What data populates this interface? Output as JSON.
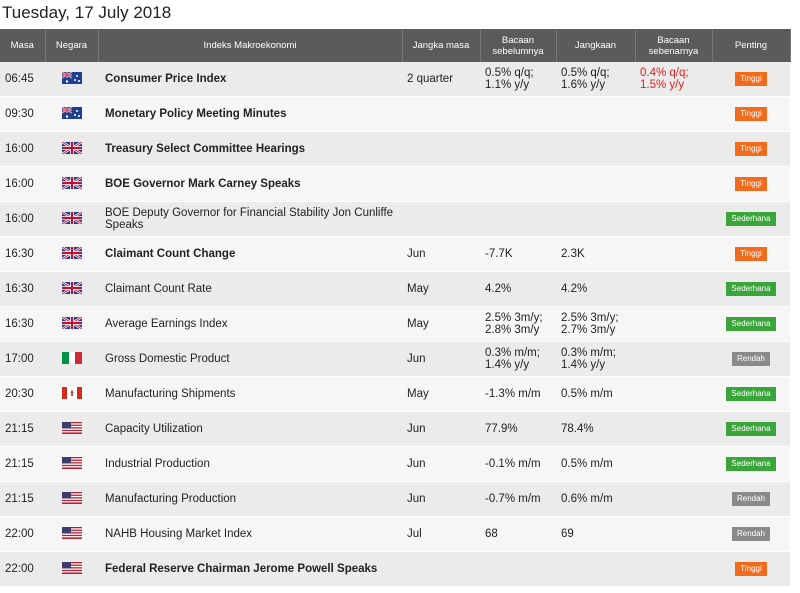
{
  "header": {
    "title": "Tuesday, 17 July 2018"
  },
  "table": {
    "columns": [
      "Masa",
      "Negara",
      "Indeks Makroekonomi",
      "Jangka masa",
      "Bacaan\nsebelumnya",
      "Jangkaan",
      "Bacaan\nsebenarnya",
      "Penting"
    ],
    "rows": [
      {
        "time": "06:45",
        "flag": "AU",
        "event": "Consumer Price Index",
        "bold": true,
        "period": "2 quarter",
        "previous": "0.5% q/q;\n1.1% y/y",
        "forecast": "0.5% q/q;\n1.6% y/y",
        "actual": "0.4% q/q;\n1.5% y/y",
        "importance": {
          "label": "Tinggi",
          "color": "#f26a1b"
        }
      },
      {
        "time": "09:30",
        "flag": "AU",
        "event": "Monetary Policy Meeting Minutes",
        "bold": true,
        "importance": {
          "label": "Tinggi",
          "color": "#f26a1b"
        }
      },
      {
        "time": "16:00",
        "flag": "GB",
        "event": "Treasury Select Committee Hearings",
        "bold": true,
        "importance": {
          "label": "Tinggi",
          "color": "#f26a1b"
        }
      },
      {
        "time": "16:00",
        "flag": "GB",
        "event": "BOE Governor Mark Carney Speaks",
        "bold": true,
        "importance": {
          "label": "Tinggi",
          "color": "#f26a1b"
        }
      },
      {
        "time": "16:00",
        "flag": "GB",
        "event": "BOE Deputy Governor for Financial Stability Jon Cunliffe Speaks",
        "bold": false,
        "importance": {
          "label": "Sederhana",
          "color": "#3aa53a"
        }
      },
      {
        "time": "16:30",
        "flag": "GB",
        "event": "Claimant Count Change",
        "bold": true,
        "period": "Jun",
        "previous": "-7.7K",
        "forecast": "2.3K",
        "importance": {
          "label": "Tinggi",
          "color": "#f26a1b"
        }
      },
      {
        "time": "16:30",
        "flag": "GB",
        "event": "Claimant Count Rate",
        "bold": false,
        "period": "May",
        "previous": "4.2%",
        "forecast": "4.2%",
        "importance": {
          "label": "Sederhana",
          "color": "#3aa53a"
        }
      },
      {
        "time": "16:30",
        "flag": "GB",
        "event": "Average Earnings Index",
        "bold": false,
        "period": "May",
        "previous": "2.5% 3m/y;\n2.8% 3m/y",
        "forecast": "2.5% 3m/y;\n2.7% 3m/y",
        "importance": {
          "label": "Sederhana",
          "color": "#3aa53a"
        }
      },
      {
        "time": "17:00",
        "flag": "IT",
        "event": "Gross Domestic Product",
        "bold": false,
        "period": "Jun",
        "previous": "0.3% m/m;\n1.4% y/y",
        "forecast": "0.3% m/m;\n1.4% y/y",
        "importance": {
          "label": "Rendah",
          "color": "#8a8a8a"
        }
      },
      {
        "time": "20:30",
        "flag": "CA",
        "event": "Manufacturing Shipments",
        "bold": false,
        "period": "May",
        "previous": "-1.3% m/m",
        "forecast": "0.5% m/m",
        "importance": {
          "label": "Sederhana",
          "color": "#3aa53a"
        }
      },
      {
        "time": "21:15",
        "flag": "US",
        "event": "Capacity Utilization",
        "bold": false,
        "period": "Jun",
        "previous": "77.9%",
        "forecast": "78.4%",
        "importance": {
          "label": "Sederhana",
          "color": "#3aa53a"
        }
      },
      {
        "time": "21:15",
        "flag": "US",
        "event": "Industrial Production",
        "bold": false,
        "period": "Jun",
        "previous": "-0.1% m/m",
        "forecast": "0.5% m/m",
        "importance": {
          "label": "Sederhana",
          "color": "#3aa53a"
        }
      },
      {
        "time": "21:15",
        "flag": "US",
        "event": "Manufacturing Production",
        "bold": false,
        "period": "Jun",
        "previous": "-0.7% m/m",
        "forecast": "0.6% m/m",
        "importance": {
          "label": "Rendah",
          "color": "#8a8a8a"
        }
      },
      {
        "time": "22:00",
        "flag": "US",
        "event": "NAHB Housing Market Index",
        "bold": false,
        "period": "Jul",
        "previous": "68",
        "forecast": "69",
        "importance": {
          "label": "Rendah",
          "color": "#8a8a8a"
        }
      },
      {
        "time": "22:00",
        "flag": "US",
        "event": "Federal Reserve Chairman Jerome Powell Speaks",
        "bold": true,
        "importance": {
          "label": "Tinggi",
          "color": "#f26a1b"
        }
      }
    ]
  }
}
